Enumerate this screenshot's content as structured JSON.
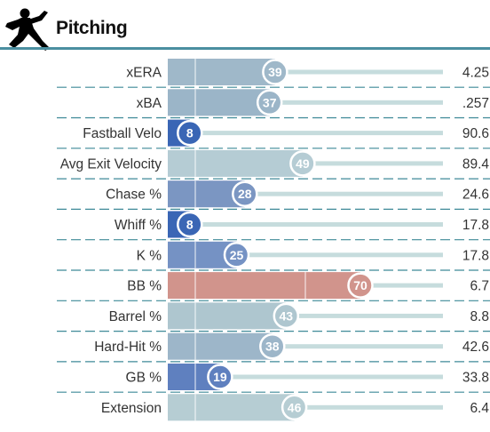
{
  "header": {
    "title": "Pitching",
    "icon": "pitcher-icon",
    "rule_color": "#4a8fa0"
  },
  "chart_data": {
    "type": "bar",
    "orientation": "horizontal",
    "percentile_range": [
      0,
      100
    ],
    "categories": [
      "xERA",
      "xBA",
      "Fastball Velo",
      "Avg Exit Velocity",
      "Chase %",
      "Whiff %",
      "K %",
      "BB %",
      "Barrel %",
      "Hard-Hit %",
      "GB %",
      "Extension"
    ],
    "percentiles": [
      39,
      37,
      8,
      49,
      28,
      8,
      25,
      70,
      43,
      38,
      19,
      46
    ],
    "values": [
      "4.25",
      ".257",
      "90.6",
      "89.4",
      "24.6",
      "17.8",
      "17.8",
      "6.7",
      "8.8",
      "42.6",
      "33.8",
      "6.4"
    ],
    "colors": [
      "#9fb8c9",
      "#9bb5c8",
      "#3a66b5",
      "#b5ccd4",
      "#7b96c2",
      "#3a66b5",
      "#7592c4",
      "#d1948c",
      "#aec6cf",
      "#9db6c9",
      "#5f80bf",
      "#b6cdd3"
    ],
    "track_color": "#c6dcdd",
    "grid": false,
    "legend": "none"
  }
}
